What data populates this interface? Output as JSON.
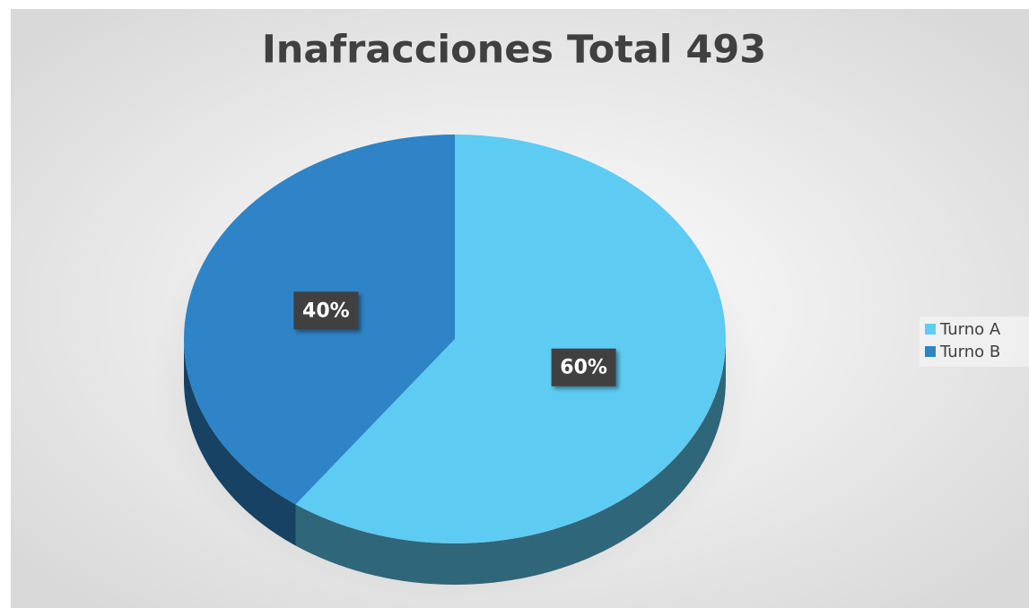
{
  "chart_data": {
    "type": "pie",
    "title": "Inafracciones Total 493",
    "categories": [
      "Turno A",
      "Turno B"
    ],
    "values": [
      60,
      40
    ],
    "value_labels": [
      "60%",
      "40%"
    ],
    "colors": [
      "#5ecbf2",
      "#2e84c6"
    ],
    "legend": "right"
  }
}
